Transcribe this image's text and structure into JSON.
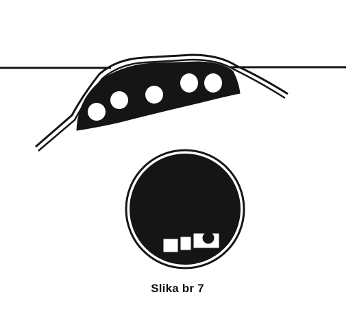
{
  "caption": "Slika br 7",
  "colors": {
    "ink": "#151515",
    "paper": "#ffffff"
  },
  "figure": {
    "upper_part": {
      "kind": "curved-strip-with-holes",
      "hole_count": 5
    },
    "lower_part": {
      "kind": "round-disc-with-slot",
      "slot_segments": 3,
      "slot_dot": 1
    }
  }
}
